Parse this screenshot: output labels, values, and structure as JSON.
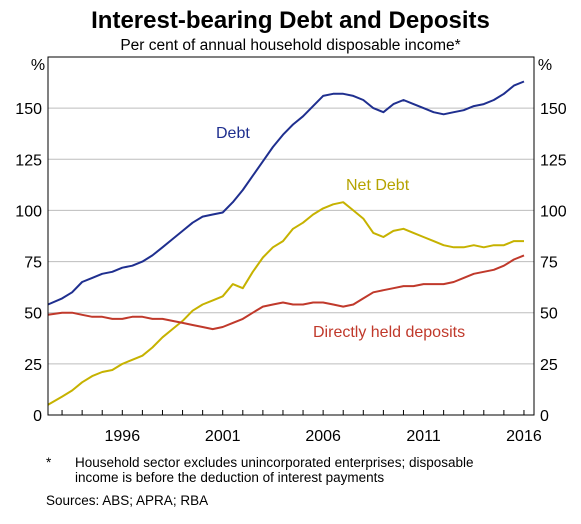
{
  "chart_data": {
    "type": "line",
    "title": "Interest-bearing Debt and Deposits",
    "subtitle": "Per cent of annual household disposable income*",
    "y_unit_left": "%",
    "y_unit_right": "%",
    "ylim": [
      0,
      175
    ],
    "yticks": [
      0,
      25,
      50,
      75,
      100,
      125,
      150
    ],
    "xlim": [
      1992.3,
      2016.5
    ],
    "xticks": [
      1996,
      2001,
      2006,
      2011,
      2016
    ],
    "grid": "horizontal",
    "series": [
      {
        "name": "Debt",
        "color": "#1f2f8f",
        "points": [
          [
            1992.3,
            54
          ],
          [
            1993,
            57
          ],
          [
            1993.5,
            60
          ],
          [
            1994,
            65
          ],
          [
            1994.5,
            67
          ],
          [
            1995,
            69
          ],
          [
            1995.5,
            70
          ],
          [
            1996,
            72
          ],
          [
            1996.5,
            73
          ],
          [
            1997,
            75
          ],
          [
            1997.5,
            78
          ],
          [
            1998,
            82
          ],
          [
            1998.5,
            86
          ],
          [
            1999,
            90
          ],
          [
            1999.5,
            94
          ],
          [
            2000,
            97
          ],
          [
            2000.5,
            98
          ],
          [
            2001,
            99
          ],
          [
            2001.5,
            104
          ],
          [
            2002,
            110
          ],
          [
            2002.5,
            117
          ],
          [
            2003,
            124
          ],
          [
            2003.5,
            131
          ],
          [
            2004,
            137
          ],
          [
            2004.5,
            142
          ],
          [
            2005,
            146
          ],
          [
            2005.5,
            151
          ],
          [
            2006,
            156
          ],
          [
            2006.5,
            157
          ],
          [
            2007,
            157
          ],
          [
            2007.5,
            156
          ],
          [
            2008,
            154
          ],
          [
            2008.5,
            150
          ],
          [
            2009,
            148
          ],
          [
            2009.5,
            152
          ],
          [
            2010,
            154
          ],
          [
            2010.5,
            152
          ],
          [
            2011,
            150
          ],
          [
            2011.5,
            148
          ],
          [
            2012,
            147
          ],
          [
            2012.5,
            148
          ],
          [
            2013,
            149
          ],
          [
            2013.5,
            151
          ],
          [
            2014,
            152
          ],
          [
            2014.5,
            154
          ],
          [
            2015,
            157
          ],
          [
            2015.5,
            161
          ],
          [
            2016,
            163
          ]
        ]
      },
      {
        "name": "Net Debt",
        "color": "#c6b200",
        "points": [
          [
            1992.3,
            5
          ],
          [
            1993,
            9
          ],
          [
            1993.5,
            12
          ],
          [
            1994,
            16
          ],
          [
            1994.5,
            19
          ],
          [
            1995,
            21
          ],
          [
            1995.5,
            22
          ],
          [
            1996,
            25
          ],
          [
            1996.5,
            27
          ],
          [
            1997,
            29
          ],
          [
            1997.5,
            33
          ],
          [
            1998,
            38
          ],
          [
            1998.5,
            42
          ],
          [
            1999,
            46
          ],
          [
            1999.5,
            51
          ],
          [
            2000,
            54
          ],
          [
            2000.5,
            56
          ],
          [
            2001,
            58
          ],
          [
            2001.5,
            64
          ],
          [
            2002,
            62
          ],
          [
            2002.5,
            70
          ],
          [
            2003,
            77
          ],
          [
            2003.5,
            82
          ],
          [
            2004,
            85
          ],
          [
            2004.5,
            91
          ],
          [
            2005,
            94
          ],
          [
            2005.5,
            98
          ],
          [
            2006,
            101
          ],
          [
            2006.5,
            103
          ],
          [
            2007,
            104
          ],
          [
            2007.5,
            100
          ],
          [
            2008,
            96
          ],
          [
            2008.5,
            89
          ],
          [
            2009,
            87
          ],
          [
            2009.5,
            90
          ],
          [
            2010,
            91
          ],
          [
            2010.5,
            89
          ],
          [
            2011,
            87
          ],
          [
            2011.5,
            85
          ],
          [
            2012,
            83
          ],
          [
            2012.5,
            82
          ],
          [
            2013,
            82
          ],
          [
            2013.5,
            83
          ],
          [
            2014,
            82
          ],
          [
            2014.5,
            83
          ],
          [
            2015,
            83
          ],
          [
            2015.5,
            85
          ],
          [
            2016,
            85
          ]
        ]
      },
      {
        "name": "Directly held deposits",
        "color": "#c0392b",
        "points": [
          [
            1992.3,
            49
          ],
          [
            1993,
            50
          ],
          [
            1993.5,
            50
          ],
          [
            1994,
            49
          ],
          [
            1994.5,
            48
          ],
          [
            1995,
            48
          ],
          [
            1995.5,
            47
          ],
          [
            1996,
            47
          ],
          [
            1996.5,
            48
          ],
          [
            1997,
            48
          ],
          [
            1997.5,
            47
          ],
          [
            1998,
            47
          ],
          [
            1998.5,
            46
          ],
          [
            1999,
            45
          ],
          [
            1999.5,
            44
          ],
          [
            2000,
            43
          ],
          [
            2000.5,
            42
          ],
          [
            2001,
            43
          ],
          [
            2001.5,
            45
          ],
          [
            2002,
            47
          ],
          [
            2002.5,
            50
          ],
          [
            2003,
            53
          ],
          [
            2003.5,
            54
          ],
          [
            2004,
            55
          ],
          [
            2004.5,
            54
          ],
          [
            2005,
            54
          ],
          [
            2005.5,
            55
          ],
          [
            2006,
            55
          ],
          [
            2006.5,
            54
          ],
          [
            2007,
            53
          ],
          [
            2007.5,
            54
          ],
          [
            2008,
            57
          ],
          [
            2008.5,
            60
          ],
          [
            2009,
            61
          ],
          [
            2009.5,
            62
          ],
          [
            2010,
            63
          ],
          [
            2010.5,
            63
          ],
          [
            2011,
            64
          ],
          [
            2011.5,
            64
          ],
          [
            2012,
            64
          ],
          [
            2012.5,
            65
          ],
          [
            2013,
            67
          ],
          [
            2013.5,
            69
          ],
          [
            2014,
            70
          ],
          [
            2014.5,
            71
          ],
          [
            2015,
            73
          ],
          [
            2015.5,
            76
          ],
          [
            2016,
            78
          ]
        ]
      }
    ],
    "annotations": {
      "debt_label": "Debt",
      "net_debt_label": "Net Debt",
      "deposits_label": "Directly held deposits"
    }
  },
  "notes": {
    "footnote_marker": "*",
    "footnote_text": "Household sector excludes unincorporated enterprises; disposable income is before the deduction of interest payments",
    "sources": "Sources:   ABS; APRA; RBA"
  }
}
